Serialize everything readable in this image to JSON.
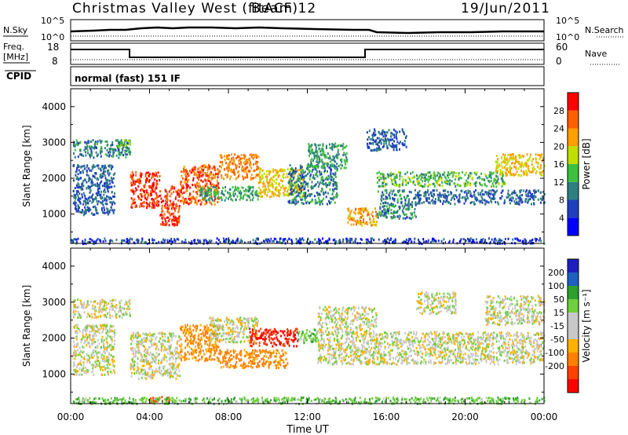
{
  "header": {
    "title": "Christmas Valley West (fitACF)",
    "beam": "Beam 12",
    "date": "19/Jun/2011"
  },
  "nsky_panel": {
    "left_label": "N.Sky",
    "right_label": "N.Search",
    "left_ticks": [
      "10^5",
      "10^0"
    ],
    "right_ticks": [
      "10^5",
      "10^0"
    ]
  },
  "freq_panel": {
    "left_label_1": "Freq.",
    "left_label_2": "[MHz]",
    "right_label": "Nave",
    "left_ticks": [
      "18",
      "8"
    ],
    "right_ticks": [
      "60",
      "0"
    ]
  },
  "cpid_panel": {
    "label": "CPID",
    "text": "normal (fast) 151 IF"
  },
  "colors": {
    "power_scale": [
      "#0000ff",
      "#1f3fbf",
      "#2f7f7f",
      "#3fbf3f",
      "#bfdf00",
      "#ff9f00",
      "#ff5f00",
      "#ff0000"
    ],
    "velocity_scale": [
      "#1f1fbf",
      "#1f5fbf",
      "#2f9f2f",
      "#6fcf3f",
      "#c8c8c8",
      "#c8c8c8",
      "#ffb000",
      "#ff8000",
      "#ff4000",
      "#ff0000"
    ]
  },
  "chart_data": [
    {
      "type": "heatmap",
      "name": "power",
      "ylabel": "Slant Range [km]",
      "xlabel": "",
      "x_ticks": [
        "00:00",
        "04:00",
        "08:00",
        "12:00",
        "16:00",
        "20:00",
        "00:00"
      ],
      "y_ticks": [
        1000,
        2000,
        3000,
        4000
      ],
      "ylim": [
        180,
        4500
      ],
      "xlim": [
        0,
        24
      ],
      "colorbar": {
        "label": "Power [dB]",
        "ticks": [
          "4",
          "8",
          "12",
          "16",
          "20",
          "24",
          "28"
        ],
        "range": [
          0,
          32
        ]
      },
      "regions": [
        {
          "t0": 0.1,
          "t1": 3.0,
          "r0": 2600,
          "r1": 3100,
          "v": 10
        },
        {
          "t0": 0.1,
          "t1": 2.2,
          "r0": 1000,
          "r1": 2400,
          "v": 8
        },
        {
          "t0": 2.2,
          "t1": 3.0,
          "r0": 2900,
          "r1": 3100,
          "v": 16
        },
        {
          "t0": 3.0,
          "t1": 4.5,
          "r0": 1200,
          "r1": 2200,
          "v": 28
        },
        {
          "t0": 4.5,
          "t1": 5.5,
          "r0": 700,
          "r1": 1800,
          "v": 28
        },
        {
          "t0": 5.5,
          "t1": 7.5,
          "r0": 1300,
          "r1": 2400,
          "v": 26
        },
        {
          "t0": 7.5,
          "t1": 9.5,
          "r0": 2000,
          "r1": 2700,
          "v": 24
        },
        {
          "t0": 9.5,
          "t1": 11.8,
          "r0": 1500,
          "r1": 2300,
          "v": 20
        },
        {
          "t0": 6.5,
          "t1": 9.5,
          "r0": 1400,
          "r1": 1800,
          "v": 12
        },
        {
          "t0": 11.0,
          "t1": 13.5,
          "r0": 1300,
          "r1": 2400,
          "v": 10
        },
        {
          "t0": 12.0,
          "t1": 14.0,
          "r0": 2300,
          "r1": 3000,
          "v": 12
        },
        {
          "t0": 14.0,
          "t1": 15.5,
          "r0": 700,
          "r1": 1200,
          "v": 22
        },
        {
          "t0": 15.5,
          "t1": 17.5,
          "r0": 900,
          "r1": 1700,
          "v": 10
        },
        {
          "t0": 15.5,
          "t1": 22.0,
          "r0": 1800,
          "r1": 2200,
          "v": 14
        },
        {
          "t0": 17.5,
          "t1": 24.0,
          "r0": 1300,
          "r1": 1700,
          "v": 8
        },
        {
          "t0": 15.0,
          "t1": 17.0,
          "r0": 2800,
          "r1": 3400,
          "v": 8
        },
        {
          "t0": 21.5,
          "t1": 24.0,
          "r0": 2100,
          "r1": 2700,
          "v": 20
        },
        {
          "t0": 0.0,
          "t1": 24.0,
          "r0": 200,
          "r1": 350,
          "v": 6
        }
      ]
    },
    {
      "type": "heatmap",
      "name": "velocity",
      "ylabel": "Slant Range [km]",
      "xlabel": "Time UT",
      "x_ticks": [
        "00:00",
        "04:00",
        "08:00",
        "12:00",
        "16:00",
        "20:00",
        "00:00"
      ],
      "y_ticks": [
        1000,
        2000,
        3000,
        4000
      ],
      "ylim": [
        180,
        4500
      ],
      "xlim": [
        0,
        24
      ],
      "colorbar": {
        "label": "Velocity [m s⁻¹]",
        "ticks": [
          "200",
          "100",
          "50",
          "15",
          "-15",
          "-50",
          "-100",
          "-200"
        ],
        "range": [
          -250,
          250
        ]
      },
      "regions": [
        {
          "t0": 0.1,
          "t1": 3.0,
          "r0": 2600,
          "r1": 3100,
          "v": 0
        },
        {
          "t0": 0.1,
          "t1": 2.2,
          "r0": 1000,
          "r1": 2400,
          "v": 0
        },
        {
          "t0": 3.0,
          "t1": 5.5,
          "r0": 900,
          "r1": 2200,
          "v": 0
        },
        {
          "t0": 5.5,
          "t1": 7.5,
          "r0": 1400,
          "r1": 2400,
          "v": -60
        },
        {
          "t0": 7.0,
          "t1": 9.5,
          "r0": 1900,
          "r1": 2600,
          "v": 0
        },
        {
          "t0": 4.0,
          "t1": 5.0,
          "r0": 250,
          "r1": 400,
          "v": -150
        },
        {
          "t0": 7.5,
          "t1": 11.0,
          "r0": 1200,
          "r1": 1700,
          "v": -70
        },
        {
          "t0": 9.0,
          "t1": 11.5,
          "r0": 1800,
          "r1": 2300,
          "v": -200
        },
        {
          "t0": 11.5,
          "t1": 12.5,
          "r0": 1900,
          "r1": 2300,
          "v": 40
        },
        {
          "t0": 12.5,
          "t1": 15.5,
          "r0": 1300,
          "r1": 2900,
          "v": 0
        },
        {
          "t0": 15.5,
          "t1": 24.0,
          "r0": 1300,
          "r1": 2200,
          "v": 0
        },
        {
          "t0": 17.5,
          "t1": 19.5,
          "r0": 2700,
          "r1": 3300,
          "v": 0
        },
        {
          "t0": 21.0,
          "t1": 24.0,
          "r0": 2400,
          "r1": 3200,
          "v": 0
        },
        {
          "t0": 0.0,
          "t1": 24.0,
          "r0": 200,
          "r1": 380,
          "v": 40
        }
      ]
    }
  ]
}
